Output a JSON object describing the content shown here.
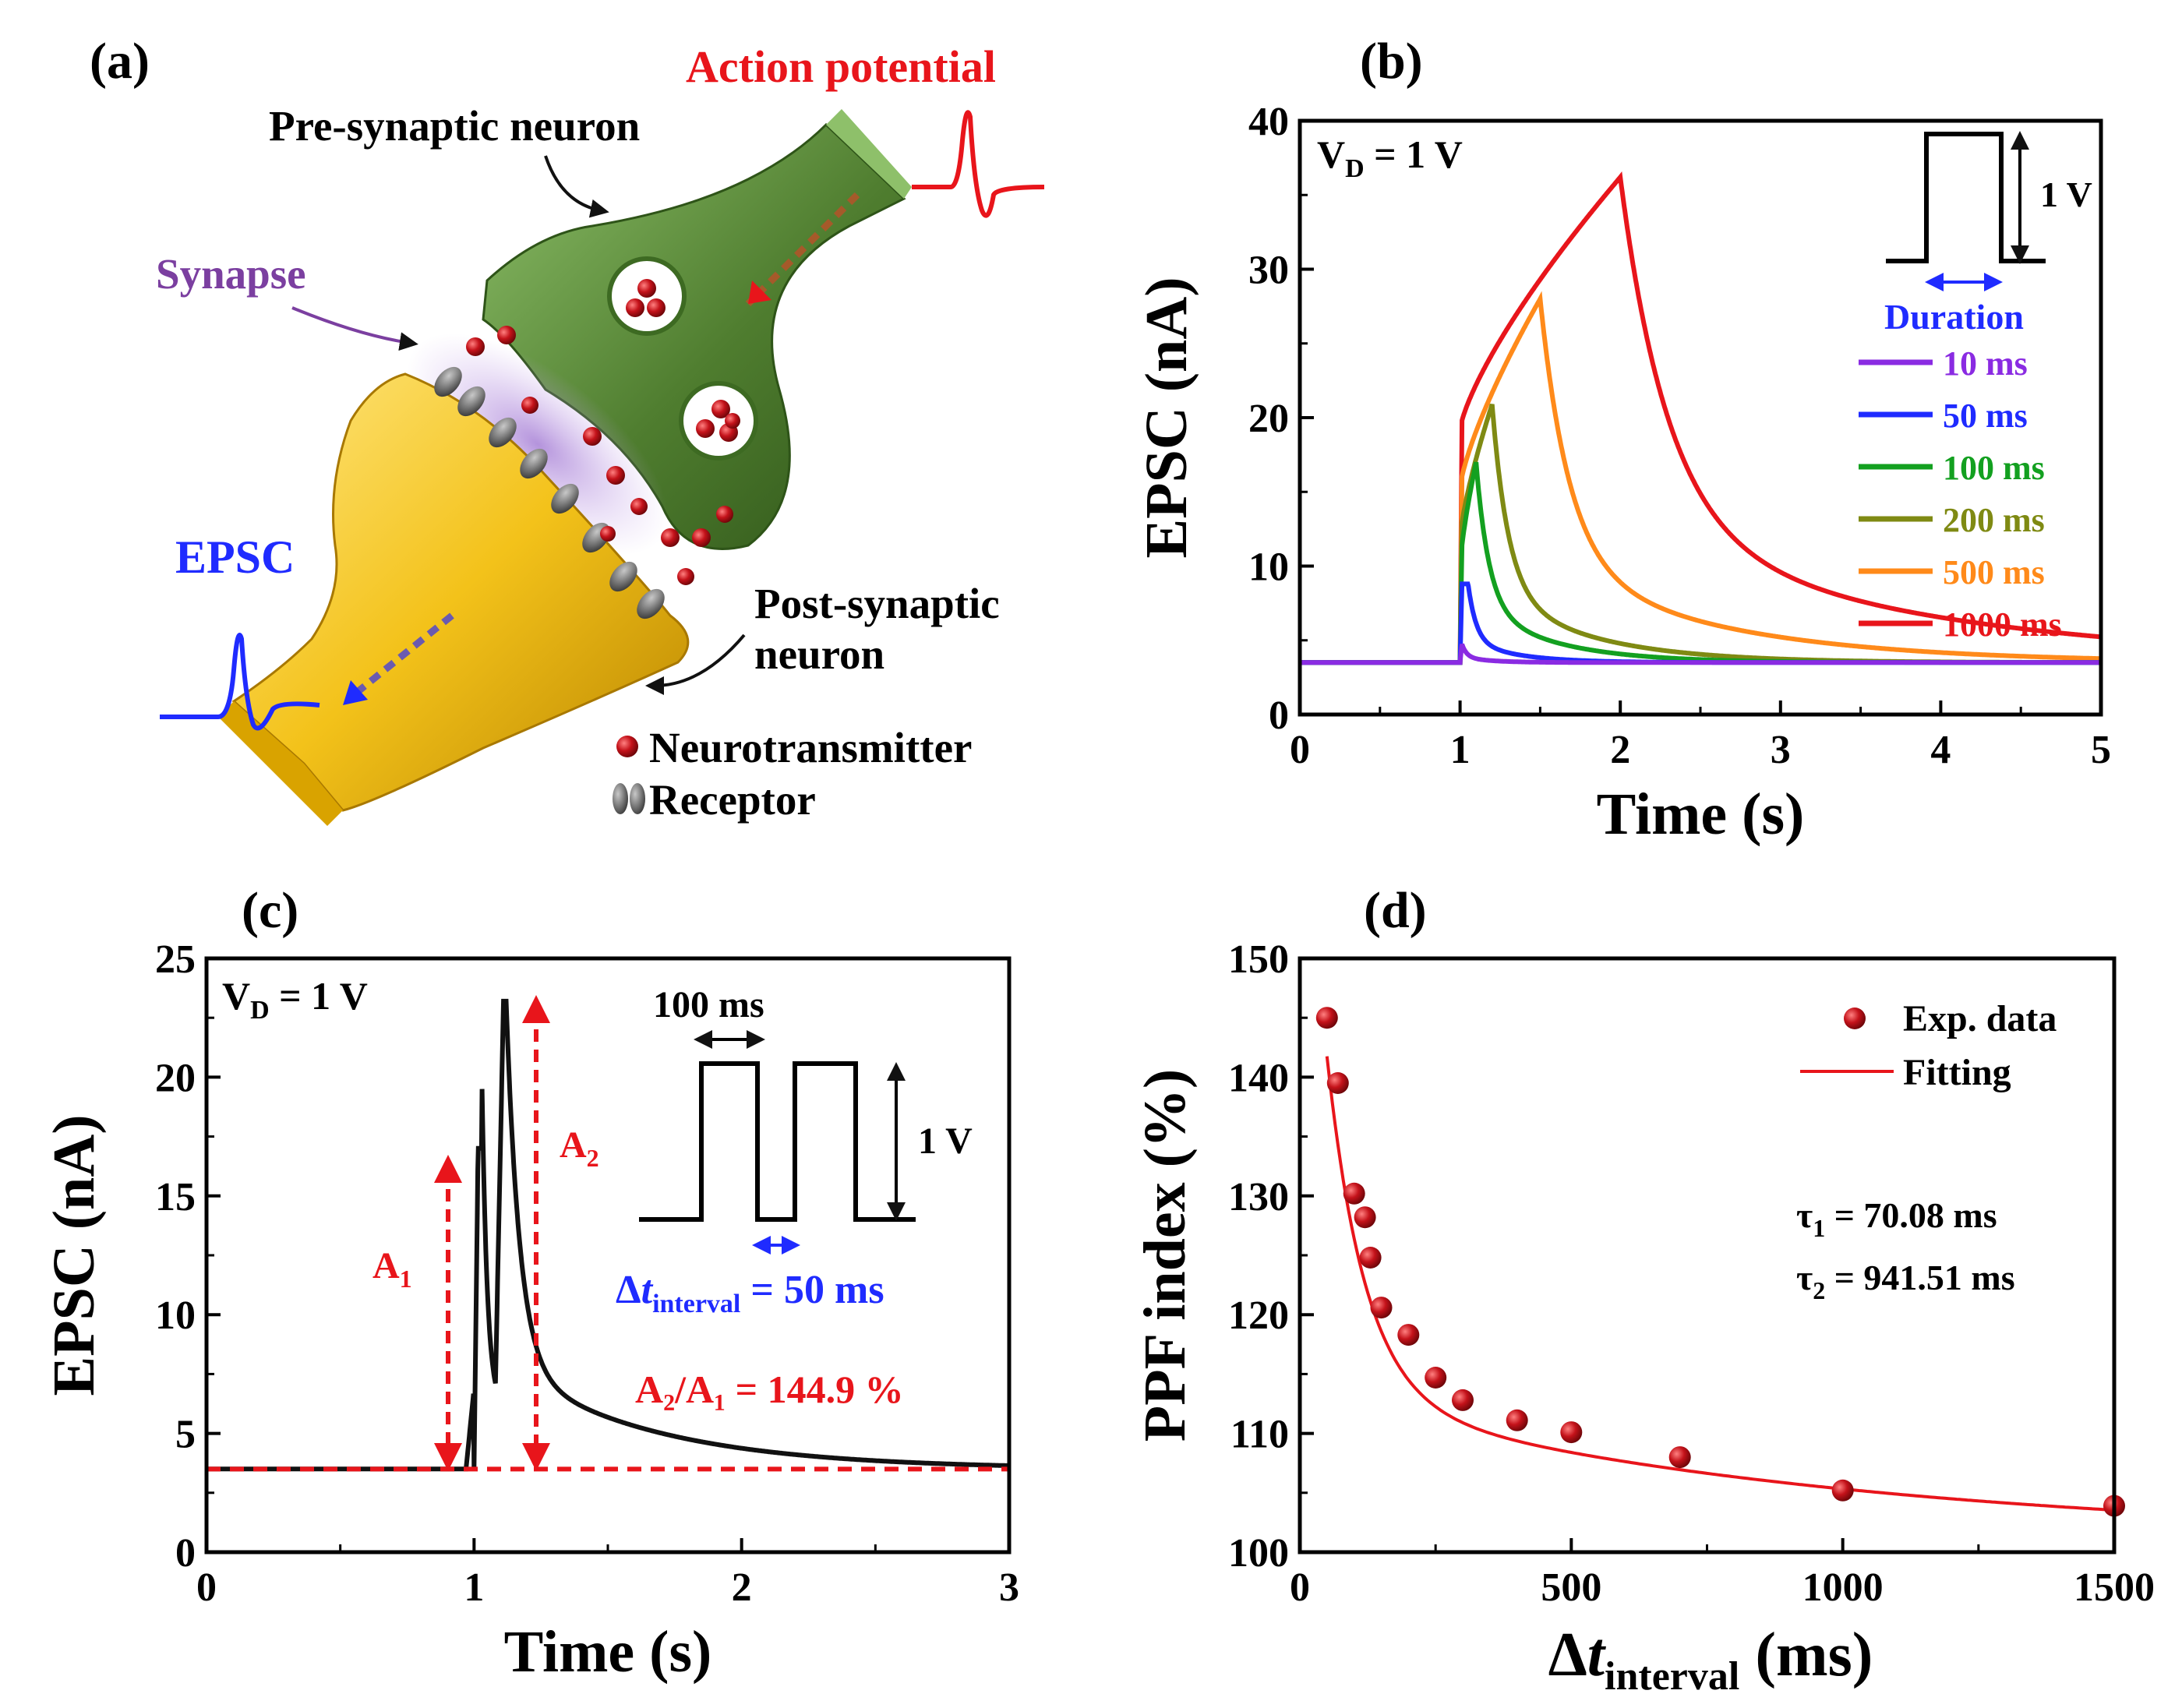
{
  "panel_a": {
    "label": "(a)",
    "action_potential": "Action potential",
    "pre_synaptic": "Pre-synaptic neuron",
    "synapse": "Synapse",
    "epsc": "EPSC",
    "post_synaptic_1": "Post-synaptic",
    "post_synaptic_2": "neuron",
    "legend_neurotransmitter": "Neurotransmitter",
    "legend_receptor": "Receptor",
    "colors": {
      "ap": "#e8151b",
      "synapse": "#7b3fa0",
      "epsc": "#1f2bff",
      "pre": "#5c8a3a",
      "post": "#f2c21a"
    }
  },
  "chart_data": [
    {
      "panel": "(b)",
      "type": "line",
      "xlabel": "Time (s)",
      "ylabel": "EPSC (nA)",
      "xlim": [
        0,
        5
      ],
      "ylim": [
        0,
        40
      ],
      "xticks": [
        "0",
        "1",
        "2",
        "3",
        "4",
        "5"
      ],
      "yticks": [
        "0",
        "10",
        "20",
        "30",
        "40"
      ],
      "annotation_vd": "1 V",
      "inset": {
        "amplitude": "1 V",
        "duration": "Duration"
      },
      "baseline": 3.5,
      "pulse_start": 1.0,
      "series": [
        {
          "name": "10 ms",
          "duration": 0.01,
          "peak": 4.8,
          "color": "#8a2be2",
          "tau": 0.03
        },
        {
          "name": "50 ms",
          "duration": 0.05,
          "peak": 8.8,
          "color": "#1f2bff",
          "tau": 0.05
        },
        {
          "name": "100 ms",
          "duration": 0.1,
          "peak": 17.0,
          "color": "#13a020",
          "tau": 0.08
        },
        {
          "name": "200 ms",
          "duration": 0.2,
          "peak": 20.9,
          "color": "#7f8a13",
          "tau": 0.1
        },
        {
          "name": "500 ms",
          "duration": 0.5,
          "peak": 28.0,
          "color": "#ff8a1a",
          "tau": 0.18
        },
        {
          "name": "1000 ms",
          "duration": 1.0,
          "peak": 36.2,
          "color": "#e8151b",
          "tau": 0.3
        }
      ]
    },
    {
      "panel": "(c)",
      "type": "line",
      "xlabel": "Time (s)",
      "ylabel": "EPSC (nA)",
      "xlim": [
        0,
        3
      ],
      "ylim": [
        0,
        25
      ],
      "xticks": [
        "0",
        "1",
        "2",
        "3"
      ],
      "yticks": [
        "0",
        "5",
        "10",
        "15",
        "20",
        "25"
      ],
      "annotation_vd": "1 V",
      "inset": {
        "width": "100 ms",
        "amplitude": "1 V",
        "interval_value": "= 50 ms"
      },
      "a1_label": "A",
      "a2_label": "A",
      "ratio_text": "A₂/A₁ = 144.9 %",
      "baseline": 3.5,
      "peak1": 17.0,
      "peak2": 23.2
    },
    {
      "panel": "(d)",
      "type": "scatter",
      "xlabel": "(ms)",
      "ylabel": "PPF index (%)",
      "xlim": [
        0,
        1500
      ],
      "ylim": [
        100,
        150
      ],
      "xticks": [
        "0",
        "500",
        "1000",
        "1500"
      ],
      "yticks": [
        "100",
        "110",
        "120",
        "130",
        "140",
        "150"
      ],
      "legend": [
        "Exp. data",
        "Fitting"
      ],
      "tau1": " = 70.08 ms",
      "tau2": " = 941.51 ms",
      "x": [
        50,
        70,
        100,
        120,
        130,
        150,
        200,
        250,
        300,
        400,
        500,
        700,
        1000,
        1500
      ],
      "y": [
        145.0,
        139.5,
        130.2,
        128.2,
        124.8,
        120.6,
        118.3,
        114.7,
        112.8,
        111.1,
        110.1,
        108.0,
        105.2,
        103.9
      ],
      "fit": {
        "y0": 101.0,
        "c1": 59.0,
        "tau1": 70.08,
        "c2": 12.5,
        "tau2": 941.51
      }
    }
  ]
}
